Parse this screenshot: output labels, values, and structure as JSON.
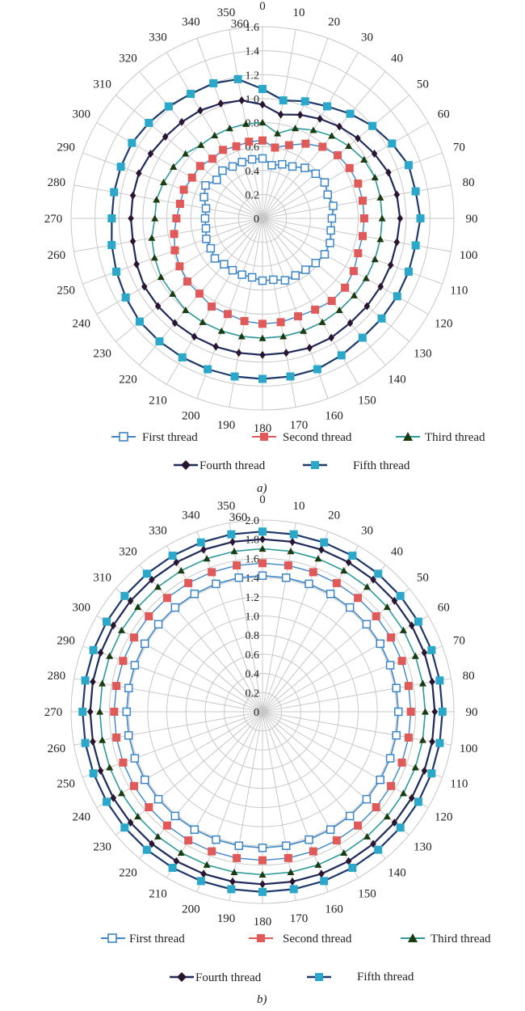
{
  "legend": {
    "first": "First thread",
    "second": "Second thread",
    "third": "Third thread",
    "fourth": "Fourth thread",
    "fifth": "Fifth thread"
  },
  "panels": {
    "a": "a)",
    "b": "b)"
  },
  "colors": {
    "first": "#3d85c6",
    "second": "#e05a5a",
    "third": "#2e9a9a",
    "third_marker": "#1a3a10",
    "fourth": "#1f2a5a",
    "fourth_marker": "#2a1530",
    "fifth": "#2aa7c9",
    "grid": "#c8c8c8"
  },
  "chart_data": [
    {
      "type": "radar",
      "panel": "a)",
      "angles_deg": [
        0,
        10,
        20,
        30,
        40,
        50,
        60,
        70,
        80,
        90,
        100,
        110,
        120,
        130,
        140,
        150,
        160,
        170,
        180,
        190,
        200,
        210,
        220,
        230,
        240,
        250,
        260,
        270,
        280,
        290,
        300,
        310,
        320,
        330,
        340,
        350
      ],
      "angle_labels": [
        "0",
        "10",
        "20",
        "30",
        "40",
        "50",
        "60",
        "70",
        "80",
        "90",
        "100",
        "110",
        "120",
        "130",
        "140",
        "150",
        "160",
        "170",
        "180",
        "190",
        "200",
        "210",
        "220",
        "230",
        "240",
        "250",
        "260",
        "270",
        "280",
        "290",
        "300",
        "310",
        "320",
        "330",
        "340",
        "350",
        "360"
      ],
      "r_ticks": [
        0,
        0.2,
        0.4,
        0.6,
        0.8,
        1.0,
        1.2,
        1.4,
        1.6
      ],
      "r_tick_labels": [
        "0",
        "0.2",
        "0.4",
        "0.6",
        "0.8",
        "1.0",
        "1.2",
        "1.4",
        "1.6"
      ],
      "rlim": [
        0,
        1.6
      ],
      "series": [
        {
          "name": "First thread",
          "values": [
            0.5,
            0.45,
            0.48,
            0.5,
            0.55,
            0.58,
            0.6,
            0.58,
            0.6,
            0.58,
            0.58,
            0.6,
            0.6,
            0.58,
            0.56,
            0.55,
            0.55,
            0.52,
            0.52,
            0.5,
            0.5,
            0.5,
            0.5,
            0.52,
            0.5,
            0.5,
            0.48,
            0.48,
            0.48,
            0.52,
            0.55,
            0.5,
            0.52,
            0.5,
            0.5,
            0.5
          ]
        },
        {
          "name": "Second thread",
          "values": [
            0.65,
            0.6,
            0.65,
            0.72,
            0.78,
            0.82,
            0.84,
            0.85,
            0.85,
            0.85,
            0.85,
            0.85,
            0.88,
            0.9,
            0.9,
            0.88,
            0.87,
            0.88,
            0.88,
            0.87,
            0.85,
            0.85,
            0.82,
            0.82,
            0.8,
            0.78,
            0.75,
            0.72,
            0.7,
            0.7,
            0.68,
            0.68,
            0.65,
            0.66,
            0.64,
            0.65
          ]
        },
        {
          "name": "Third thread",
          "values": [
            0.8,
            0.72,
            0.8,
            0.85,
            0.9,
            0.94,
            0.98,
            1.0,
            1.0,
            1.0,
            1.0,
            1.0,
            1.0,
            1.0,
            1.0,
            1.0,
            1.0,
            1.0,
            1.0,
            1.0,
            1.0,
            1.0,
            1.0,
            0.98,
            0.98,
            0.96,
            0.94,
            0.9,
            0.9,
            0.88,
            0.86,
            0.84,
            0.8,
            0.8,
            0.8,
            0.8
          ]
        },
        {
          "name": "Fourth thread",
          "values": [
            0.95,
            0.88,
            0.92,
            0.96,
            1.0,
            1.04,
            1.08,
            1.12,
            1.14,
            1.15,
            1.14,
            1.14,
            1.14,
            1.14,
            1.14,
            1.15,
            1.15,
            1.14,
            1.14,
            1.14,
            1.14,
            1.14,
            1.14,
            1.14,
            1.14,
            1.12,
            1.1,
            1.1,
            1.1,
            1.1,
            1.08,
            1.06,
            1.05,
            1.04,
            1.02,
            1.0
          ]
        },
        {
          "name": "Fifth thread",
          "values": [
            1.08,
            1.0,
            1.04,
            1.08,
            1.14,
            1.2,
            1.25,
            1.3,
            1.3,
            1.32,
            1.3,
            1.3,
            1.3,
            1.3,
            1.3,
            1.32,
            1.34,
            1.34,
            1.34,
            1.34,
            1.34,
            1.34,
            1.34,
            1.34,
            1.32,
            1.3,
            1.28,
            1.26,
            1.26,
            1.26,
            1.26,
            1.24,
            1.22,
            1.2,
            1.2,
            1.18
          ]
        }
      ]
    },
    {
      "type": "radar",
      "panel": "b)",
      "angles_deg": [
        0,
        10,
        20,
        30,
        40,
        50,
        60,
        70,
        80,
        90,
        100,
        110,
        120,
        130,
        140,
        150,
        160,
        170,
        180,
        190,
        200,
        210,
        220,
        230,
        240,
        250,
        260,
        270,
        280,
        290,
        300,
        310,
        320,
        330,
        340,
        350
      ],
      "angle_labels": [
        "0",
        "10",
        "20",
        "30",
        "40",
        "50",
        "60",
        "70",
        "80",
        "90",
        "100",
        "110",
        "120",
        "130",
        "140",
        "150",
        "160",
        "170",
        "180",
        "190",
        "200",
        "210",
        "220",
        "230",
        "240",
        "250",
        "260",
        "270",
        "280",
        "290",
        "300",
        "310",
        "320",
        "330",
        "340",
        "350",
        "360"
      ],
      "r_ticks": [
        0,
        0.2,
        0.4,
        0.6,
        0.8,
        1.0,
        1.2,
        1.4,
        1.6,
        1.8,
        2.0
      ],
      "r_tick_labels": [
        "0",
        "0.2",
        "0.4",
        "0.6",
        "0.8",
        "1.0",
        "1.2",
        "1.4",
        "1.6",
        "1.8",
        "2.0"
      ],
      "rlim": [
        0,
        2.0
      ],
      "series": [
        {
          "name": "First thread",
          "values": [
            1.42,
            1.42,
            1.42,
            1.42,
            1.42,
            1.42,
            1.42,
            1.42,
            1.42,
            1.42,
            1.42,
            1.42,
            1.42,
            1.42,
            1.42,
            1.42,
            1.42,
            1.42,
            1.42,
            1.42,
            1.42,
            1.42,
            1.42,
            1.42,
            1.42,
            1.42,
            1.42,
            1.42,
            1.42,
            1.42,
            1.42,
            1.42,
            1.42,
            1.42,
            1.42,
            1.42
          ]
        },
        {
          "name": "Second thread",
          "values": [
            1.55,
            1.55,
            1.55,
            1.55,
            1.55,
            1.55,
            1.55,
            1.55,
            1.55,
            1.55,
            1.55,
            1.55,
            1.55,
            1.55,
            1.55,
            1.55,
            1.55,
            1.55,
            1.55,
            1.55,
            1.55,
            1.55,
            1.55,
            1.55,
            1.55,
            1.55,
            1.55,
            1.55,
            1.55,
            1.55,
            1.55,
            1.55,
            1.55,
            1.55,
            1.55,
            1.55
          ]
        },
        {
          "name": "Third thread",
          "values": [
            1.7,
            1.7,
            1.7,
            1.7,
            1.7,
            1.7,
            1.7,
            1.7,
            1.7,
            1.7,
            1.7,
            1.7,
            1.7,
            1.7,
            1.7,
            1.7,
            1.7,
            1.7,
            1.7,
            1.7,
            1.7,
            1.7,
            1.7,
            1.7,
            1.7,
            1.7,
            1.7,
            1.7,
            1.7,
            1.7,
            1.7,
            1.7,
            1.7,
            1.7,
            1.7,
            1.7
          ]
        },
        {
          "name": "Fourth thread",
          "values": [
            1.8,
            1.8,
            1.8,
            1.8,
            1.8,
            1.8,
            1.8,
            1.8,
            1.8,
            1.8,
            1.8,
            1.8,
            1.8,
            1.8,
            1.8,
            1.8,
            1.8,
            1.8,
            1.8,
            1.8,
            1.8,
            1.8,
            1.8,
            1.8,
            1.8,
            1.8,
            1.8,
            1.8,
            1.8,
            1.8,
            1.8,
            1.8,
            1.8,
            1.8,
            1.8,
            1.8
          ]
        },
        {
          "name": "Fifth thread",
          "values": [
            1.88,
            1.88,
            1.88,
            1.88,
            1.88,
            1.88,
            1.88,
            1.88,
            1.88,
            1.88,
            1.88,
            1.88,
            1.88,
            1.88,
            1.88,
            1.88,
            1.88,
            1.88,
            1.88,
            1.88,
            1.88,
            1.88,
            1.88,
            1.88,
            1.88,
            1.88,
            1.88,
            1.88,
            1.88,
            1.88,
            1.88,
            1.88,
            1.88,
            1.88,
            1.88,
            1.88
          ]
        }
      ]
    }
  ]
}
